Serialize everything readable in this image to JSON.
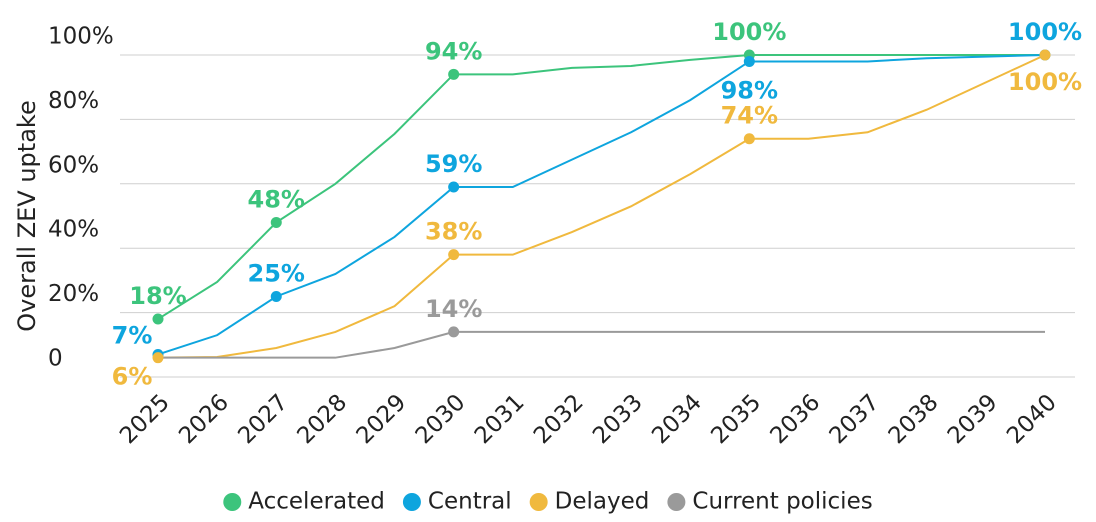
{
  "chart_data": {
    "type": "line",
    "y_label": "Overall ZEV uptake",
    "categories": [
      "2025",
      "2026",
      "2027",
      "2028",
      "2029",
      "2030",
      "2031",
      "2032",
      "2033",
      "2034",
      "2035",
      "2036",
      "2037",
      "2038",
      "2039",
      "2040"
    ],
    "ylim": [
      0,
      100
    ],
    "yticks": [
      0,
      {
        "value": 20,
        "label": "20%"
      },
      {
        "value": 40,
        "label": "40%"
      },
      {
        "value": 60,
        "label": "60%"
      },
      {
        "value": 80,
        "label": "80%"
      },
      {
        "value": 100,
        "label": "100%"
      }
    ],
    "grid": true,
    "legend": "bottom",
    "series": [
      {
        "name": "Accelerated",
        "color": "#3cc47c",
        "values": [
          18,
          29.5,
          48,
          60,
          75.5,
          94,
          94,
          96,
          96.6,
          98.5,
          100,
          100,
          100,
          100,
          100,
          100
        ],
        "value_labels": [
          "18%",
          null,
          "48%",
          null,
          null,
          "94%",
          null,
          null,
          null,
          null,
          "100%",
          null,
          null,
          null,
          null,
          null
        ]
      },
      {
        "name": "Central",
        "color": "#0ea5de",
        "values": [
          7,
          13,
          25,
          32,
          43.5,
          59,
          59,
          67.5,
          76,
          86,
          98,
          98,
          98,
          99,
          99.5,
          100
        ],
        "value_labels": [
          "7%",
          null,
          "25%",
          null,
          null,
          "59%",
          null,
          null,
          null,
          null,
          "98%",
          null,
          null,
          null,
          null,
          "100%"
        ]
      },
      {
        "name": "Delayed",
        "color": "#f0b93e",
        "values": [
          6,
          6.2,
          9,
          14,
          22,
          38,
          38,
          45,
          53,
          63,
          74,
          74,
          76,
          83,
          91.5,
          100
        ],
        "value_labels": [
          "6%",
          null,
          null,
          null,
          null,
          "38%",
          null,
          null,
          null,
          null,
          "74%",
          null,
          null,
          null,
          null,
          "100%"
        ]
      },
      {
        "name": "Current policies",
        "color": "#9a9a9a",
        "values": [
          6,
          6,
          6,
          6,
          9,
          14,
          14,
          14,
          14,
          14,
          14,
          14,
          14,
          14,
          14,
          14
        ],
        "value_labels": [
          null,
          null,
          null,
          null,
          null,
          "14%",
          null,
          null,
          null,
          null,
          null,
          null,
          null,
          null,
          null,
          null
        ]
      }
    ]
  }
}
